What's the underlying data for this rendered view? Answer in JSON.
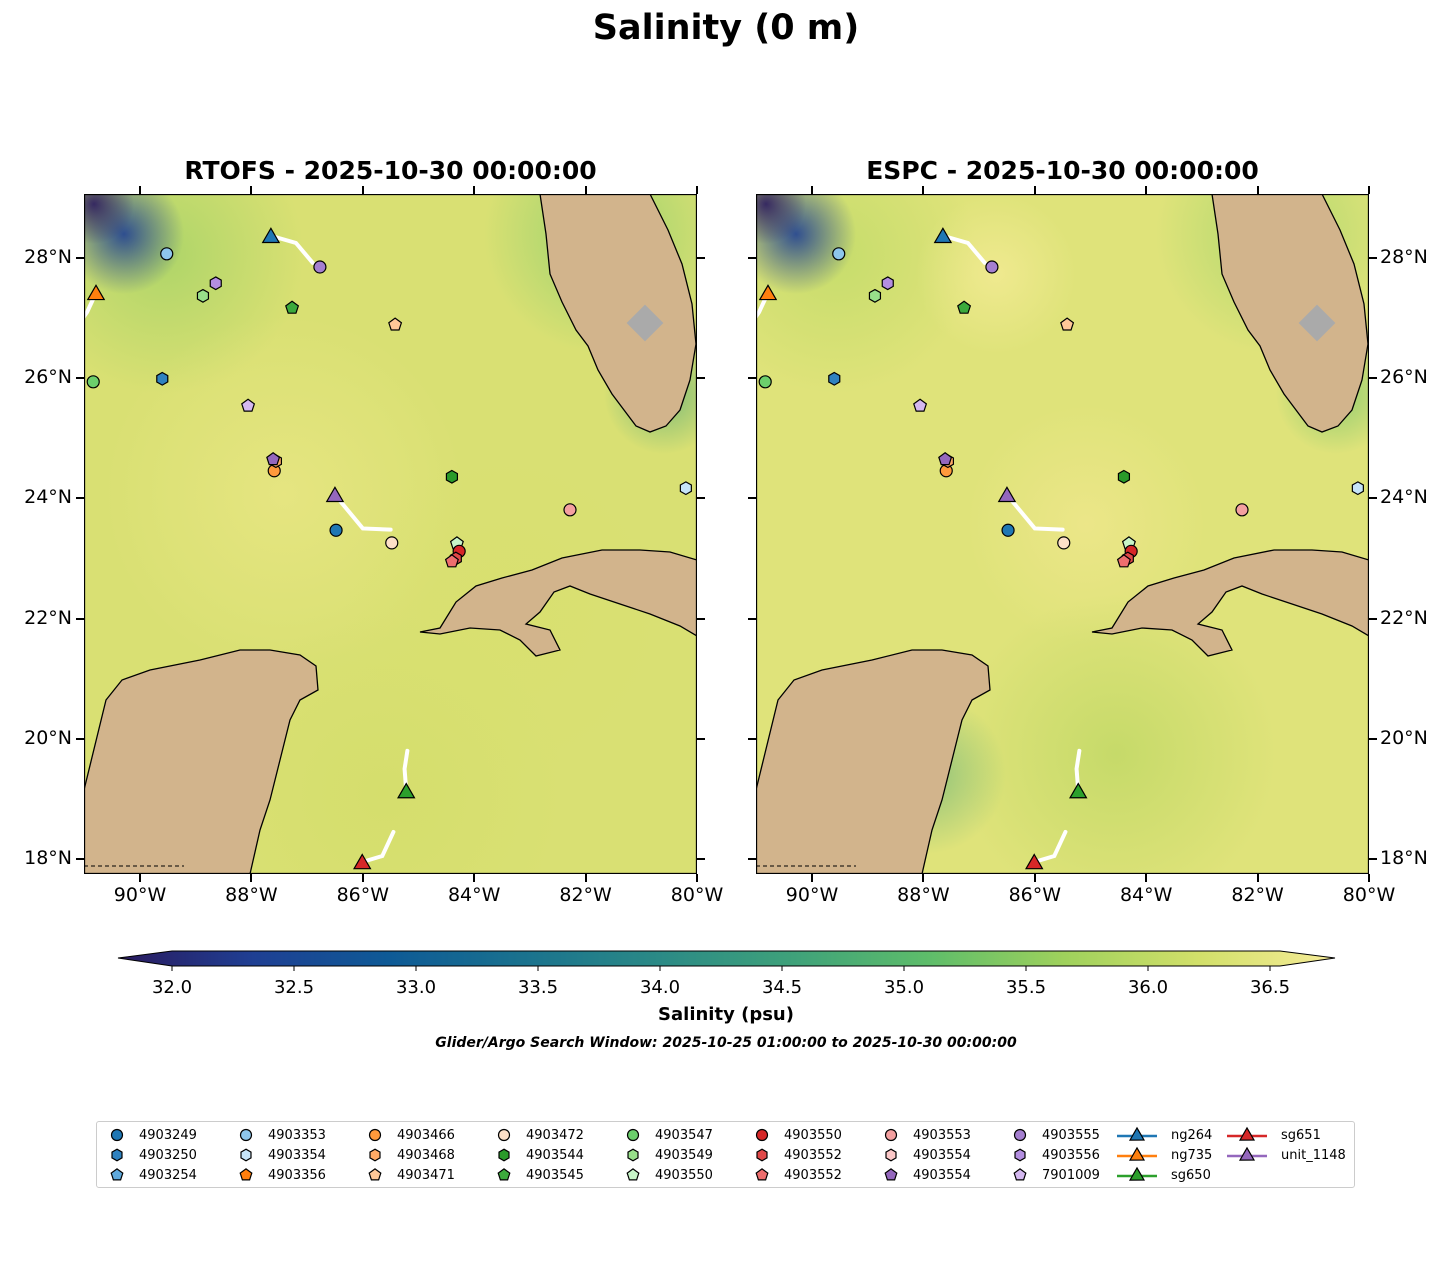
{
  "figure": {
    "title": "Salinity (0 m)",
    "colorbar_label": "Salinity (psu)",
    "search_window": "Glider/Argo Search Window: 2025-10-25 01:00:00 to 2025-10-30 00:00:00"
  },
  "panels": [
    {
      "title": "RTOFS - 2025-10-30 00:00:00"
    },
    {
      "title": "ESPC - 2025-10-30 00:00:00"
    }
  ],
  "chart_data": {
    "type": "map",
    "variable": "Salinity",
    "units": "psu",
    "depth_m": 0,
    "lon_range": [
      -91.1,
      -80
    ],
    "lat_range": [
      17.75,
      29.06
    ],
    "x_ticks": [
      "90°W",
      "88°W",
      "86°W",
      "84°W",
      "82°W",
      "80°W"
    ],
    "x_tick_values": [
      -90,
      -88,
      -86,
      -84,
      -82,
      -80
    ],
    "y_ticks": [
      "18°N",
      "20°N",
      "22°N",
      "24°N",
      "26°N",
      "28°N"
    ],
    "y_tick_values": [
      18,
      20,
      22,
      24,
      26,
      28
    ],
    "colorbar": {
      "min": 32.0,
      "max": 36.5,
      "ticks": [
        "32.0",
        "32.5",
        "33.0",
        "33.5",
        "34.0",
        "34.5",
        "35.0",
        "35.5",
        "36.0",
        "36.5"
      ],
      "extend": "both",
      "colors": [
        "#2a1a5e",
        "#1f3f93",
        "#0e5a96",
        "#1a728e",
        "#2b8a86",
        "#3fa27a",
        "#5ebd6a",
        "#9fd15c",
        "#d2e06a",
        "#f6ec98"
      ]
    },
    "markers": [
      {
        "id": "4903249",
        "shape": "circle",
        "color": "#1f77b4",
        "lon": -86.48,
        "lat": 23.47
      },
      {
        "id": "4903250",
        "shape": "hexagon",
        "color": "#2f82c0",
        "lon": -89.6,
        "lat": 25.99
      },
      {
        "id": "4903254",
        "shape": "pentagon",
        "color": "#5fa9dc"
      },
      {
        "id": "4903353",
        "shape": "circle",
        "color": "#8ec6ec",
        "lon": -89.52,
        "lat": 28.07
      },
      {
        "id": "4903354",
        "shape": "hexagon",
        "color": "#c6e4f8",
        "lon": -80.2,
        "lat": 24.17
      },
      {
        "id": "4903356",
        "shape": "pentagon",
        "color": "#ff7f0e"
      },
      {
        "id": "4903466",
        "shape": "circle",
        "color": "#ff9a3c",
        "lon": -87.59,
        "lat": 24.46
      },
      {
        "id": "4903468",
        "shape": "hexagon",
        "color": "#ffaa66",
        "lon": -87.56,
        "lat": 24.62
      },
      {
        "id": "4903471",
        "shape": "pentagon",
        "color": "#ffc898",
        "lon": -85.42,
        "lat": 26.89
      },
      {
        "id": "4903472",
        "shape": "circle",
        "color": "#fde0c8",
        "lon": -85.48,
        "lat": 23.26
      },
      {
        "id": "4903544",
        "shape": "hexagon",
        "color": "#2a9a2a",
        "lon": -84.4,
        "lat": 24.36
      },
      {
        "id": "4903545",
        "shape": "pentagon",
        "color": "#3caa3c",
        "lon": -87.27,
        "lat": 27.17
      },
      {
        "id": "4903547",
        "shape": "circle",
        "color": "#6ccf6c",
        "lon": -90.84,
        "lat": 25.94
      },
      {
        "id": "4903549",
        "shape": "hexagon",
        "color": "#98df8a",
        "lon": -88.87,
        "lat": 27.37
      },
      {
        "id": "4903550",
        "shape": "pentagon",
        "color": "#c8f5c8",
        "lon": -84.31,
        "lat": 23.25
      },
      {
        "id": "4903550",
        "shape": "circle",
        "color": "#d62728",
        "lon": -84.27,
        "lat": 23.12
      },
      {
        "id": "4903552",
        "shape": "hexagon",
        "color": "#e04848",
        "lon": -84.33,
        "lat": 23.0
      },
      {
        "id": "4903552",
        "shape": "pentagon",
        "color": "#ee6e6e",
        "lon": -84.4,
        "lat": 22.95
      },
      {
        "id": "4903553",
        "shape": "circle",
        "color": "#f4a0a0",
        "lon": -82.28,
        "lat": 23.81
      },
      {
        "id": "4903554",
        "shape": "hexagon",
        "color": "#fcc8c8"
      },
      {
        "id": "4903554",
        "shape": "pentagon",
        "color": "#9467bd",
        "lon": -87.61,
        "lat": 24.65
      },
      {
        "id": "4903555",
        "shape": "circle",
        "color": "#a57fd0",
        "lon": -86.77,
        "lat": 27.85
      },
      {
        "id": "4903556",
        "shape": "hexagon",
        "color": "#b38ee0",
        "lon": -88.64,
        "lat": 27.58
      },
      {
        "id": "7901009",
        "shape": "pentagon",
        "color": "#d4b8f0",
        "lon": -88.06,
        "lat": 25.54
      }
    ],
    "gliders": [
      {
        "id": "ng264",
        "color": "#1f77b4",
        "lon": -87.65,
        "lat": 28.37,
        "track": [
          [
            -87.65,
            28.37
          ],
          [
            -87.2,
            28.25
          ],
          [
            -86.9,
            27.92
          ]
        ]
      },
      {
        "id": "ng735",
        "color": "#ff7f0e",
        "lon": -90.79,
        "lat": 27.42,
        "track": [
          [
            -90.79,
            27.42
          ],
          [
            -90.95,
            27.1
          ],
          [
            -91.1,
            26.9
          ]
        ]
      },
      {
        "id": "sg650",
        "color": "#2ca02c",
        "lon": -85.22,
        "lat": 19.13,
        "track": [
          [
            -85.22,
            19.13
          ],
          [
            -85.25,
            19.5
          ],
          [
            -85.2,
            19.8
          ]
        ]
      },
      {
        "id": "sg651",
        "color": "#d62728",
        "lon": -86.01,
        "lat": 17.95,
        "track": [
          [
            -86.01,
            17.95
          ],
          [
            -85.65,
            18.05
          ],
          [
            -85.45,
            18.45
          ]
        ]
      },
      {
        "id": "unit_1148",
        "color": "#9467bd",
        "lon": -86.5,
        "lat": 24.06,
        "track": [
          [
            -86.5,
            24.06
          ],
          [
            -86.0,
            23.5
          ],
          [
            -85.5,
            23.48
          ]
        ]
      }
    ]
  },
  "legend": {
    "order": [
      0,
      1,
      2,
      3,
      4,
      5,
      6,
      7,
      8,
      9,
      10,
      11,
      12,
      13,
      14,
      15,
      16,
      17,
      18,
      19,
      20,
      21,
      22,
      23
    ]
  }
}
